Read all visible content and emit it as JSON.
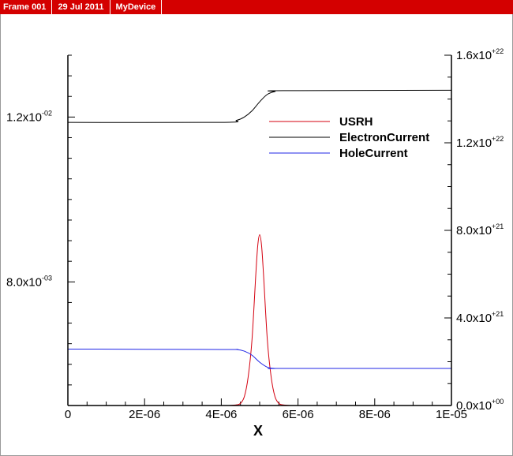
{
  "header": {
    "frame": "Frame 001",
    "date": "29 Jul 2011",
    "device": "MyDevice"
  },
  "colors": {
    "header_bg": "#d40000",
    "usrh": "#d4000f",
    "electron": "#000000",
    "hole": "#1f24e6"
  },
  "chart_data": {
    "type": "line",
    "xlabel": "X",
    "xlim": [
      0,
      1e-05
    ],
    "x_ticks": [
      "0",
      "2E-06",
      "4E-06",
      "6E-06",
      "8E-06",
      "1E-05"
    ],
    "left_axis": {
      "ylim": [
        0.005,
        0.0135
      ],
      "ticks": [
        {
          "value": 0.012,
          "mantissa": "1.2x10",
          "exponent": "-02"
        },
        {
          "value": 0.008,
          "mantissa": "8.0x10",
          "exponent": "-03"
        }
      ]
    },
    "right_axis": {
      "ylim": [
        0,
        1.6e+22
      ],
      "ticks": [
        {
          "value": 0,
          "mantissa": "0.0x10",
          "exponent": "+00"
        },
        {
          "value": 4e+21,
          "mantissa": "4.0x10",
          "exponent": "+21"
        },
        {
          "value": 8e+21,
          "mantissa": "8.0x10",
          "exponent": "+21"
        },
        {
          "value": 1.2e+22,
          "mantissa": "1.2x10",
          "exponent": "+22"
        },
        {
          "value": 1.6e+22,
          "mantissa": "1.6x10",
          "exponent": "+22"
        }
      ]
    },
    "series": [
      {
        "name": "USRH",
        "axis": "right",
        "color": "#d4000f",
        "points": [
          [
            0,
            0
          ],
          [
            4e-06,
            0
          ],
          [
            4.2e-06,
            2e+18
          ],
          [
            4.4e-06,
            3e+19
          ],
          [
            4.5e-06,
            1e+20
          ],
          [
            4.6e-06,
            4e+20
          ],
          [
            4.7e-06,
            1.3e+21
          ],
          [
            4.8e-06,
            3e+21
          ],
          [
            4.9e-06,
            6e+21
          ],
          [
            4.95e-06,
            7.3e+21
          ],
          [
            5e-06,
            7.8e+21
          ],
          [
            5.05e-06,
            7.3e+21
          ],
          [
            5.1e-06,
            6e+21
          ],
          [
            5.2e-06,
            3e+21
          ],
          [
            5.3e-06,
            1.3e+21
          ],
          [
            5.4e-06,
            4e+20
          ],
          [
            5.5e-06,
            1e+20
          ],
          [
            5.6e-06,
            3e+19
          ],
          [
            5.8e-06,
            2e+18
          ],
          [
            6e-06,
            0
          ],
          [
            1e-05,
            0
          ]
        ]
      },
      {
        "name": "ElectronCurrent",
        "axis": "left",
        "color": "#000000",
        "points": [
          [
            0,
            0.01187
          ],
          [
            4e-06,
            0.01187
          ],
          [
            4.4e-06,
            0.01192
          ],
          [
            4.6e-06,
            0.012
          ],
          [
            4.8e-06,
            0.01215
          ],
          [
            5e-06,
            0.01237
          ],
          [
            5.2e-06,
            0.01255
          ],
          [
            5.4e-06,
            0.01262
          ],
          [
            5.6e-06,
            0.01264
          ],
          [
            1e-05,
            0.01265
          ]
        ]
      },
      {
        "name": "HoleCurrent",
        "axis": "left",
        "color": "#1f24e6",
        "points": [
          [
            0,
            0.00637
          ],
          [
            4e-06,
            0.00636
          ],
          [
            4.4e-06,
            0.00636
          ],
          [
            4.6e-06,
            0.00632
          ],
          [
            4.8e-06,
            0.00622
          ],
          [
            5e-06,
            0.00605
          ],
          [
            5.2e-06,
            0.00593
          ],
          [
            5.4e-06,
            0.0059
          ],
          [
            5.6e-06,
            0.0059
          ],
          [
            1e-05,
            0.0059
          ]
        ]
      }
    ]
  }
}
